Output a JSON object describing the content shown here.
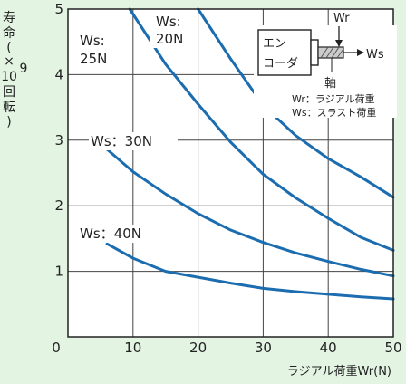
{
  "chart_data": {
    "type": "line",
    "title": "",
    "xlabel": "ラジアル荷重Wr(N)",
    "ylabel_chars": [
      "寿",
      "命",
      "(",
      "×",
      "10",
      "9",
      "回",
      "転",
      ")"
    ],
    "xlim": [
      0,
      50
    ],
    "ylim": [
      0,
      5
    ],
    "x_ticks": [
      "0",
      "10",
      "20",
      "30",
      "40",
      "50"
    ],
    "y_ticks": [
      "1",
      "2",
      "3",
      "4",
      "5"
    ],
    "grid": true,
    "line_color": "#1b6db0",
    "series": [
      {
        "name_lines": [
          "Ws:",
          "20N"
        ],
        "x": [
          20,
          25,
          30,
          35,
          40,
          45,
          50
        ],
        "y": [
          5.0,
          4.24,
          3.53,
          3.07,
          2.72,
          2.44,
          2.13
        ]
      },
      {
        "name_lines": [
          "Ws:",
          "25N"
        ],
        "x": [
          9.5,
          15,
          20,
          25,
          30,
          35,
          40,
          45,
          50
        ],
        "y": [
          5.0,
          4.16,
          3.55,
          2.97,
          2.48,
          2.12,
          1.81,
          1.52,
          1.32
        ]
      },
      {
        "name_lines": [
          "Ws：30N"
        ],
        "x": [
          6,
          10,
          15,
          20,
          25,
          30,
          35,
          40,
          45,
          50
        ],
        "y": [
          2.86,
          2.52,
          2.18,
          1.88,
          1.63,
          1.44,
          1.28,
          1.15,
          1.03,
          0.93
        ]
      },
      {
        "name_lines": [
          "Ws：40N"
        ],
        "x": [
          6,
          10,
          15,
          20,
          25,
          30,
          35,
          40,
          45,
          50
        ],
        "y": [
          1.42,
          1.2,
          1.0,
          0.91,
          0.82,
          0.74,
          0.69,
          0.65,
          0.61,
          0.58
        ]
      }
    ],
    "diagram": {
      "encoder_lines": [
        "エン",
        "コーダ"
      ],
      "shaft": "軸",
      "wr": "Wr",
      "ws": "Ws",
      "legend": [
        "Wr：ラジアル荷重",
        "Ws：スラスト荷重"
      ]
    }
  }
}
